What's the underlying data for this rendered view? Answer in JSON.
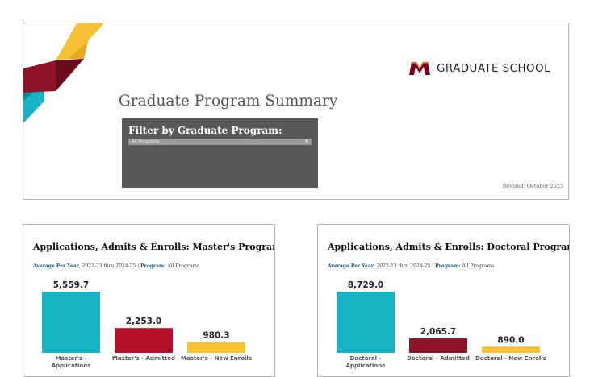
{
  "header": {
    "brand_text": "GRADUATE SCHOOL",
    "page_title": "Graduate Program Summary",
    "filter_label": "Filter by Graduate Program:",
    "filter_value": "All Programs",
    "revised": "Revised: October 2025",
    "colors": {
      "gold": "#f8c133",
      "maroon": "#7a0019",
      "teal": "#17b4c6",
      "panel": "#595959"
    }
  },
  "charts": [
    {
      "title": "Applications, Admits & Enrolls: Master's Programs",
      "sub_prefix": "Average Per Year,",
      "sub_years": "2022-23 thru 2024-25 |",
      "sub_program_label": "Program:",
      "sub_program_value": "All Programs"
    },
    {
      "title": "Applications, Admits & Enrolls: Doctoral Programs",
      "sub_prefix": "Average Per Year,",
      "sub_years": "2022-23 thru 2024-25 |",
      "sub_program_label": "Program:",
      "sub_program_value": "All Programs"
    }
  ],
  "chart_data": [
    {
      "type": "bar",
      "title": "Applications, Admits & Enrolls: Master's Programs",
      "categories": [
        "Master's - Applications",
        "Master's - Admitted",
        "Master's - New Enrolls"
      ],
      "values": [
        5559.7,
        2253.0,
        980.3
      ],
      "value_labels": [
        "5,559.7",
        "2,253.0",
        "980.3"
      ],
      "colors": [
        "#17b4c6",
        "#b5122a",
        "#f8c133"
      ],
      "ylim": [
        0,
        5559.7
      ],
      "grid": false
    },
    {
      "type": "bar",
      "title": "Applications, Admits & Enrolls: Doctoral Programs",
      "categories": [
        "Doctoral - Applications",
        "Doctoral - Admitted",
        "Doctoral - New Enrolls"
      ],
      "values": [
        8729.0,
        2065.7,
        890.0
      ],
      "value_labels": [
        "8,729.0",
        "2,065.7",
        "890.0"
      ],
      "colors": [
        "#17b4c6",
        "#8b1526",
        "#f8c133"
      ],
      "ylim": [
        0,
        8729.0
      ],
      "grid": false
    }
  ]
}
